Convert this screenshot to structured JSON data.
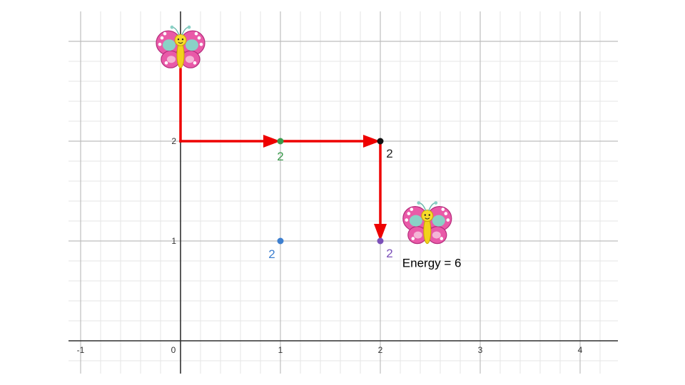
{
  "graph": {
    "x_ticks": [
      "-1",
      "0",
      "1",
      "2",
      "3",
      "4"
    ],
    "y_ticks": [
      "1",
      "2"
    ],
    "x_range": [
      -1.1,
      4.37
    ],
    "y_range": [
      -0.32,
      3.0
    ],
    "minor_per_unit": 5,
    "axis_color": "#333333",
    "major_grid_color": "#bdbdbd",
    "minor_grid_color": "#e6e6e6"
  },
  "points": [
    {
      "x": 1,
      "y": 2,
      "label": "2",
      "color": "#3a9b4c",
      "label_color": "#3a9b4c"
    },
    {
      "x": 2,
      "y": 2,
      "label": "2",
      "color": "#111111",
      "label_color": "#222222"
    },
    {
      "x": 1,
      "y": 1,
      "label": "2",
      "color": "#3d7fcf",
      "label_color": "#3d7fcf"
    },
    {
      "x": 2,
      "y": 1,
      "label": "2",
      "color": "#7b4fb8",
      "label_color": "#7b4fb8"
    }
  ],
  "path": {
    "color": "#ee0000",
    "segments": [
      {
        "from": [
          0,
          2.72
        ],
        "to": [
          0,
          2
        ],
        "arrow": false
      },
      {
        "from": [
          0,
          2
        ],
        "to": [
          1,
          2
        ],
        "arrow": true
      },
      {
        "from": [
          1,
          2
        ],
        "to": [
          2,
          2
        ],
        "arrow": true
      },
      {
        "from": [
          2,
          2
        ],
        "to": [
          2,
          1
        ],
        "arrow": true
      }
    ]
  },
  "butterflies": [
    {
      "name": "butterfly-start",
      "x": 0,
      "y": 2.92
    },
    {
      "name": "butterfly-end",
      "x": 2.47,
      "y": 1.16
    }
  ],
  "energy_label": "Energy = 6",
  "energy_pos": {
    "x": 2.22,
    "y": 0.74
  }
}
